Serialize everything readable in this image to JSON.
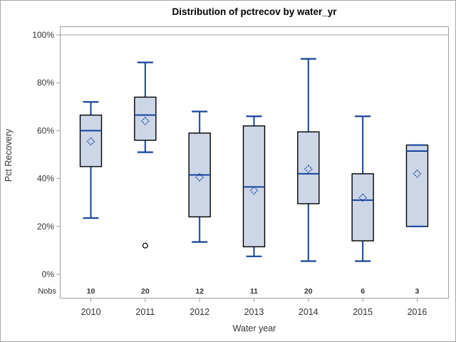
{
  "chart_data": {
    "type": "box",
    "title": "Distribution of pctrecov by water_yr",
    "xlabel": "Water year",
    "ylabel": "Pct Recovery",
    "ylim": [
      0,
      100
    ],
    "yticks": [
      0,
      20,
      40,
      60,
      80,
      100
    ],
    "ytick_suffix": "%",
    "reference_line": 100,
    "grid": "off",
    "legend": "none",
    "nobs_label": "Nobs",
    "categories": [
      "2010",
      "2011",
      "2012",
      "2013",
      "2014",
      "2015",
      "2016"
    ],
    "nobs": [
      10,
      20,
      12,
      11,
      20,
      6,
      3
    ],
    "series": [
      {
        "category": "2010",
        "n": 10,
        "whisker_low": 23.5,
        "q1": 45,
        "median": 60,
        "mean": 55.5,
        "q3": 66.5,
        "whisker_high": 72,
        "outliers": []
      },
      {
        "category": "2011",
        "n": 20,
        "whisker_low": 51,
        "q1": 56,
        "median": 66.5,
        "mean": 64,
        "q3": 74,
        "whisker_high": 88.5,
        "outliers": [
          12
        ]
      },
      {
        "category": "2012",
        "n": 12,
        "whisker_low": 13.5,
        "q1": 24,
        "median": 41.5,
        "mean": 40.5,
        "q3": 59,
        "whisker_high": 68,
        "outliers": []
      },
      {
        "category": "2013",
        "n": 11,
        "whisker_low": 7.5,
        "q1": 11.5,
        "median": 36.5,
        "mean": 35,
        "q3": 62,
        "whisker_high": 66,
        "outliers": []
      },
      {
        "category": "2014",
        "n": 20,
        "whisker_low": 5.5,
        "q1": 29.5,
        "median": 42,
        "mean": 44,
        "q3": 59.5,
        "whisker_high": 90,
        "outliers": []
      },
      {
        "category": "2015",
        "n": 6,
        "whisker_low": 5.5,
        "q1": 14,
        "median": 31,
        "mean": 32,
        "q3": 42,
        "whisker_high": 66,
        "outliers": []
      },
      {
        "category": "2016",
        "n": 3,
        "whisker_low": 20,
        "q1": 20,
        "median": 51.5,
        "mean": 42,
        "q3": 54,
        "whisker_high": 54,
        "outliers": []
      }
    ],
    "colors": {
      "box_fill": "#ccd6e7",
      "box_stroke": "#000000",
      "whisker_median_mean": "#16439c",
      "outlier_stroke": "#000000",
      "frame_gray": "#a0a0a0",
      "axis_text": "#333333",
      "title_text": "#000000",
      "background": "#ffffff"
    }
  }
}
